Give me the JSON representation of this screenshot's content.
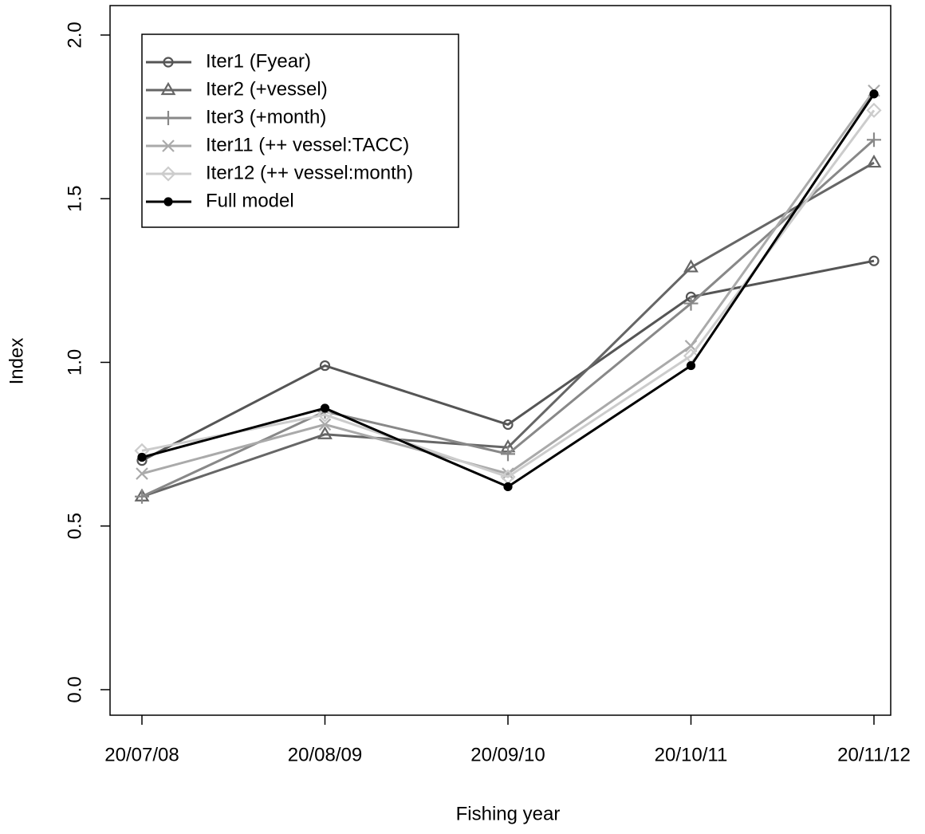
{
  "chart_data": {
    "type": "line",
    "x_label": "Fishing year",
    "y_label": "Index",
    "categories": [
      "20/07/08",
      "20/08/09",
      "20/09/10",
      "20/10/11",
      "20/11/12"
    ],
    "series": [
      {
        "name": "Iter1 (Fyear)",
        "color": "#555555",
        "marker": "circle",
        "values": [
          0.7,
          0.99,
          0.81,
          1.2,
          1.31
        ]
      },
      {
        "name": "Iter2 (+vessel)",
        "color": "#666666",
        "marker": "triangle",
        "values": [
          0.59,
          0.78,
          0.74,
          1.29,
          1.61
        ]
      },
      {
        "name": "Iter3 (+month)",
        "color": "#888888",
        "marker": "plus",
        "values": [
          0.59,
          0.85,
          0.72,
          1.18,
          1.68
        ]
      },
      {
        "name": "Iter11 (++ vessel:TACC)",
        "color": "#aaaaaa",
        "marker": "cross",
        "values": [
          0.66,
          0.81,
          0.66,
          1.05,
          1.83
        ]
      },
      {
        "name": "Iter12 (++ vessel:month)",
        "color": "#cccccc",
        "marker": "diamond",
        "values": [
          0.73,
          0.84,
          0.65,
          1.02,
          1.77
        ]
      },
      {
        "name": "Full model",
        "color": "#000000",
        "marker": "dot",
        "values": [
          0.71,
          0.86,
          0.62,
          0.99,
          1.82
        ]
      }
    ],
    "ylim": [
      -0.078,
      2.09
    ],
    "yticks": [
      {
        "value": 0,
        "label": "0.0"
      },
      0.5,
      {
        "value": 1,
        "label": "1.0"
      },
      1.5,
      {
        "value": 2,
        "label": "2.0"
      }
    ],
    "legend": "top-left"
  }
}
